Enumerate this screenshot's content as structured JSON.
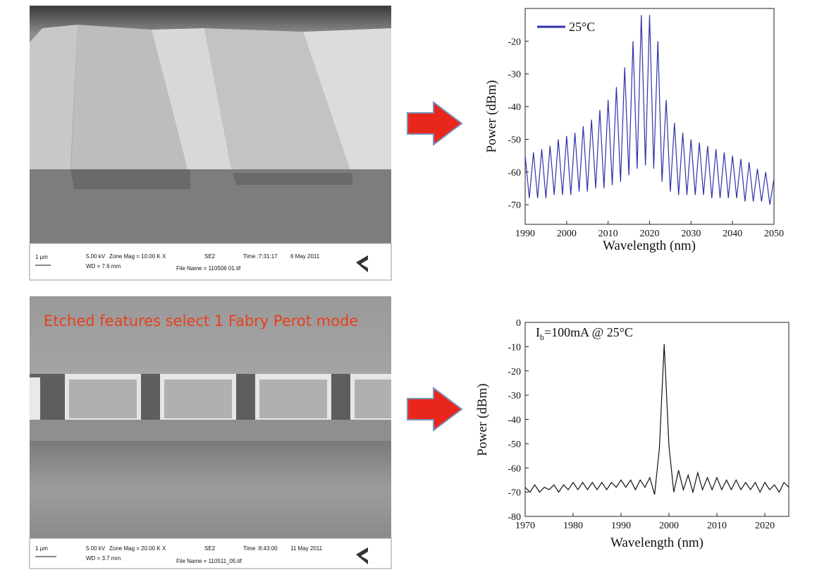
{
  "sem_images": [
    {
      "scale": "1 µm",
      "kv": "5.00 kV",
      "mag": "Zone Mag = 10.00 K X",
      "detector": "SE2",
      "time": "Time :7:31:17",
      "date": "6 May 2011",
      "wd": "WD = 7.6 mm",
      "file": "File Name = 110506 01.tif"
    },
    {
      "caption": "Etched features select 1 Fabry Perot mode",
      "scale": "1 µm",
      "kv": "5.00 kV",
      "mag": "Zone Mag = 20.00 K X",
      "detector": "SE2",
      "time": "Time :8:43:00",
      "date": "11 May 2011",
      "wd": "WD = 3.7 mm",
      "file": "File Name = 110511_05.tif"
    }
  ],
  "chart_data": [
    {
      "type": "line",
      "xlabel": "Wavelength (nm)",
      "ylabel": "Power (dBm)",
      "legend": "upper left",
      "x": [
        1990,
        1991,
        1992,
        1993,
        1994,
        1995,
        1996,
        1997,
        1998,
        1999,
        2000,
        2001,
        2002,
        2003,
        2004,
        2005,
        2006,
        2007,
        2008,
        2009,
        2010,
        2011,
        2012,
        2013,
        2014,
        2015,
        2016,
        2017,
        2018,
        2019,
        2020,
        2021,
        2022,
        2023,
        2024,
        2025,
        2026,
        2027,
        2028,
        2029,
        2030,
        2031,
        2032,
        2033,
        2034,
        2035,
        2036,
        2037,
        2038,
        2039,
        2040,
        2041,
        2042,
        2043,
        2044,
        2045,
        2046,
        2047,
        2048,
        2049,
        2050
      ],
      "series": [
        {
          "name": "25°C",
          "color": "#2e32a8",
          "values": [
            -55,
            -68,
            -54,
            -68,
            -53,
            -68,
            -52,
            -67,
            -50,
            -67,
            -49,
            -67,
            -48,
            -66,
            -46,
            -66,
            -44,
            -65,
            -41,
            -65,
            -38,
            -64,
            -34,
            -63,
            -28,
            -61,
            -20,
            -59,
            -12,
            -58,
            -12,
            -59,
            -20,
            -63,
            -38,
            -66,
            -45,
            -67,
            -48,
            -67,
            -50,
            -67,
            -51,
            -67,
            -52,
            -68,
            -53,
            -68,
            -54,
            -68,
            -55,
            -68,
            -56,
            -69,
            -57,
            -69,
            -59,
            -69,
            -60,
            -70,
            -62
          ]
        }
      ],
      "xlim": [
        1990,
        2050
      ],
      "ylim": [
        -76,
        -10
      ],
      "xticks": [
        1990,
        2000,
        2010,
        2020,
        2030,
        2040,
        2050
      ],
      "yticks": [
        -70,
        -60,
        -50,
        -40,
        -30,
        -20
      ]
    },
    {
      "type": "line",
      "xlabel": "Wavelength (nm)",
      "ylabel": "Power (dBm)",
      "annotation": [
        "I",
        "b",
        "=100mA @ 25°C"
      ],
      "x": [
        1970,
        1971,
        1972,
        1973,
        1974,
        1975,
        1976,
        1977,
        1978,
        1979,
        1980,
        1981,
        1982,
        1983,
        1984,
        1985,
        1986,
        1987,
        1988,
        1989,
        1990,
        1991,
        1992,
        1993,
        1994,
        1995,
        1996,
        1997,
        1998,
        1999,
        2000,
        2001,
        2002,
        2003,
        2004,
        2005,
        2006,
        2007,
        2008,
        2009,
        2010,
        2011,
        2012,
        2013,
        2014,
        2015,
        2016,
        2017,
        2018,
        2019,
        2020,
        2021,
        2022,
        2023,
        2024,
        2025
      ],
      "series": [
        {
          "color": "#111111",
          "values": [
            -68,
            -70,
            -67,
            -70,
            -68,
            -69,
            -67,
            -70,
            -67,
            -69,
            -66,
            -69,
            -66,
            -69,
            -66,
            -69,
            -66,
            -69,
            -66,
            -68,
            -65,
            -68,
            -65,
            -69,
            -65,
            -68,
            -64,
            -71,
            -52,
            -9,
            -51,
            -70,
            -61,
            -69,
            -63,
            -70,
            -62,
            -69,
            -64,
            -69,
            -64,
            -69,
            -65,
            -69,
            -65,
            -69,
            -66,
            -69,
            -66,
            -70,
            -66,
            -69,
            -67,
            -70,
            -66,
            -68
          ]
        }
      ],
      "xlim": [
        1970,
        2025
      ],
      "ylim": [
        -80,
        0
      ],
      "xticks": [
        1970,
        1980,
        1990,
        2000,
        2010,
        2020
      ],
      "yticks": [
        -80,
        -70,
        -60,
        -50,
        -40,
        -30,
        -20,
        -10,
        0
      ]
    }
  ]
}
